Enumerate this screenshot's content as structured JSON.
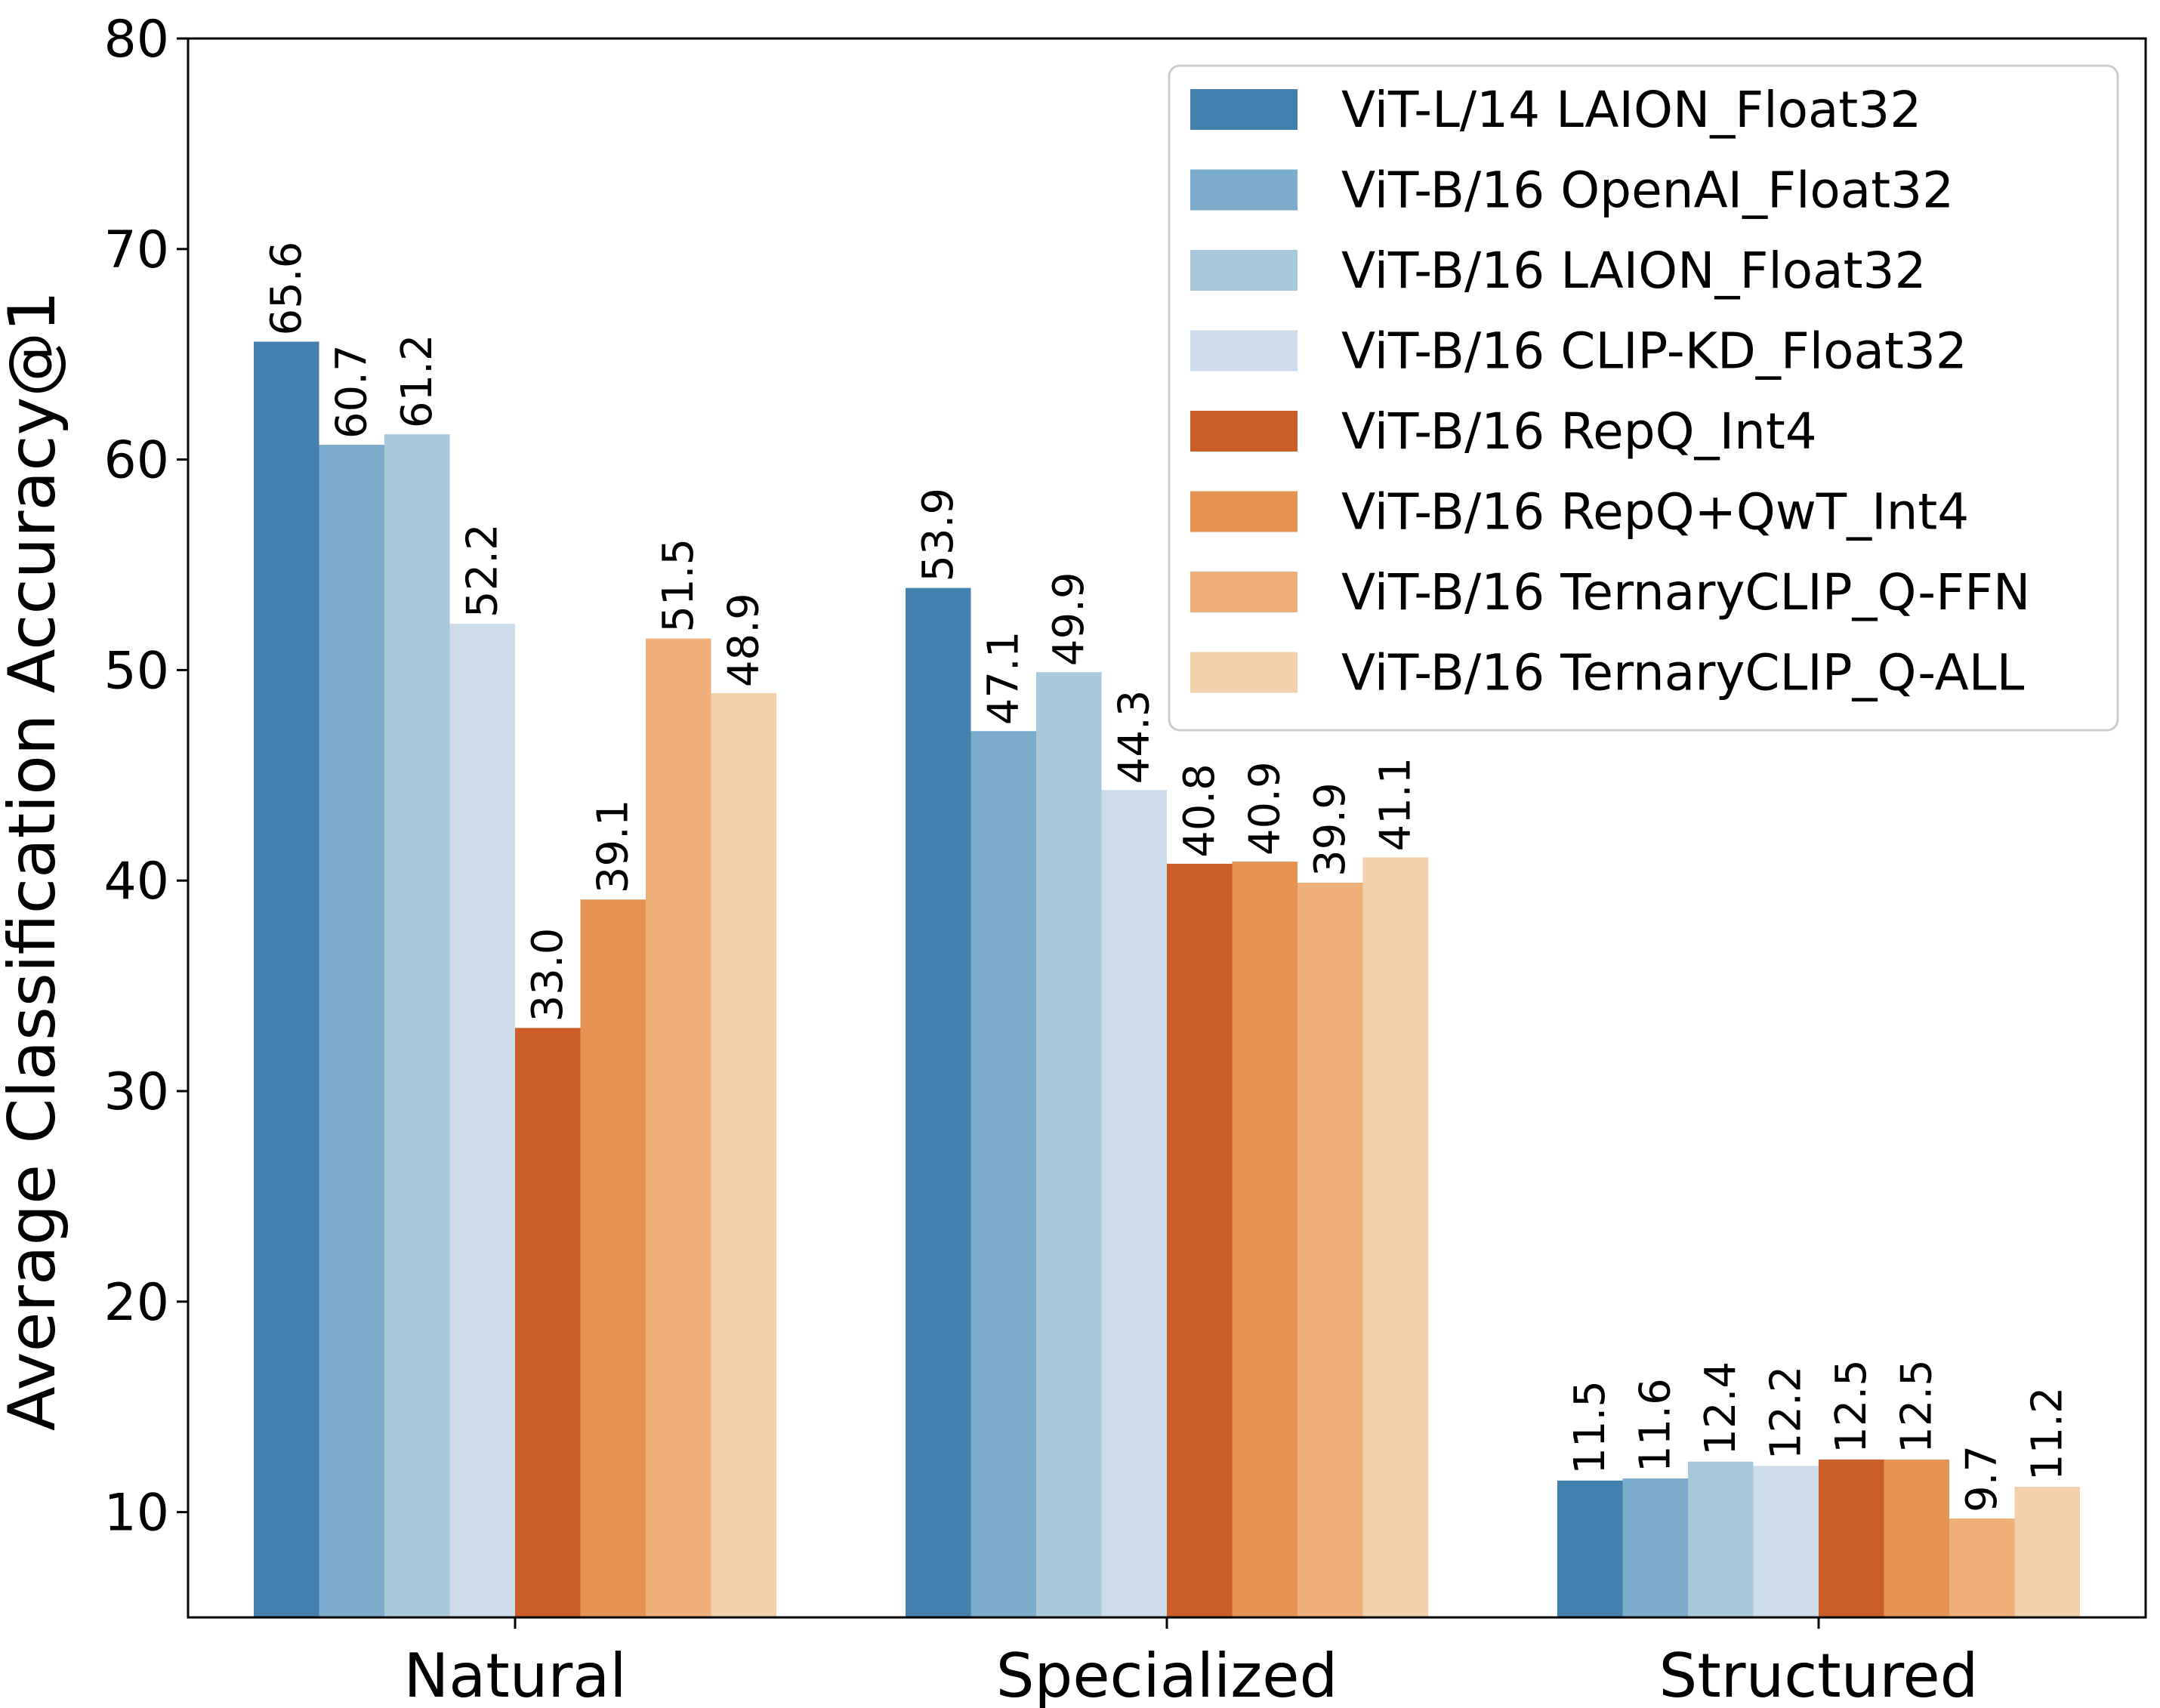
{
  "chart_data": {
    "type": "bar",
    "title": "",
    "xlabel": "",
    "ylabel": "Average Classification Accuracy@1",
    "ylim": [
      5,
      80
    ],
    "yticks": [
      10,
      20,
      30,
      40,
      50,
      60,
      70,
      80
    ],
    "grid": false,
    "legend_position": "top-right",
    "categories": [
      "Natural",
      "Specialized",
      "Structured"
    ],
    "series": [
      {
        "name": "ViT-L/14 LAION_Float32",
        "color": "#4380AE",
        "values": [
          65.6,
          53.9,
          11.5
        ],
        "labels": [
          "65.6",
          "53.9",
          "11.5"
        ]
      },
      {
        "name": "ViT-B/16 OpenAI_Float32",
        "color": "#7BACCB",
        "values": [
          60.7,
          47.1,
          11.6
        ],
        "labels": [
          "60.7",
          "47.1",
          "11.6"
        ]
      },
      {
        "name": "ViT-B/16 LAION_Float32",
        "color": "#A8C8DC",
        "values": [
          61.2,
          49.9,
          12.4
        ],
        "labels": [
          "61.2",
          "49.9",
          "12.4"
        ]
      },
      {
        "name": "ViT-B/16 CLIP-KD_Float32",
        "color": "#CCDCEA",
        "values": [
          52.2,
          44.3,
          12.2
        ],
        "labels": [
          "52.2",
          "44.3",
          "12.2"
        ]
      },
      {
        "name": "ViT-B/16 RepQ_Int4",
        "color": "#CB5E28",
        "values": [
          33.0,
          40.8,
          12.5
        ],
        "labels": [
          "33.0",
          "40.8",
          "12.5"
        ]
      },
      {
        "name": "ViT-B/16 RepQ+QwT_Int4",
        "color": "#E59352",
        "values": [
          39.1,
          40.9,
          12.5
        ],
        "labels": [
          "39.1",
          "40.9",
          "12.5"
        ]
      },
      {
        "name": "ViT-B/16 TernaryCLIP_Q-FFN",
        "color": "#EEAF7B",
        "values": [
          51.5,
          39.9,
          9.7
        ],
        "labels": [
          "51.5",
          "39.9",
          "9.7"
        ]
      },
      {
        "name": "ViT-B/16 TernaryCLIP_Q-ALL",
        "color": "#F3CFAB",
        "values": [
          48.9,
          41.1,
          11.2
        ],
        "labels": [
          "48.9",
          "41.1",
          "11.2"
        ]
      }
    ]
  }
}
